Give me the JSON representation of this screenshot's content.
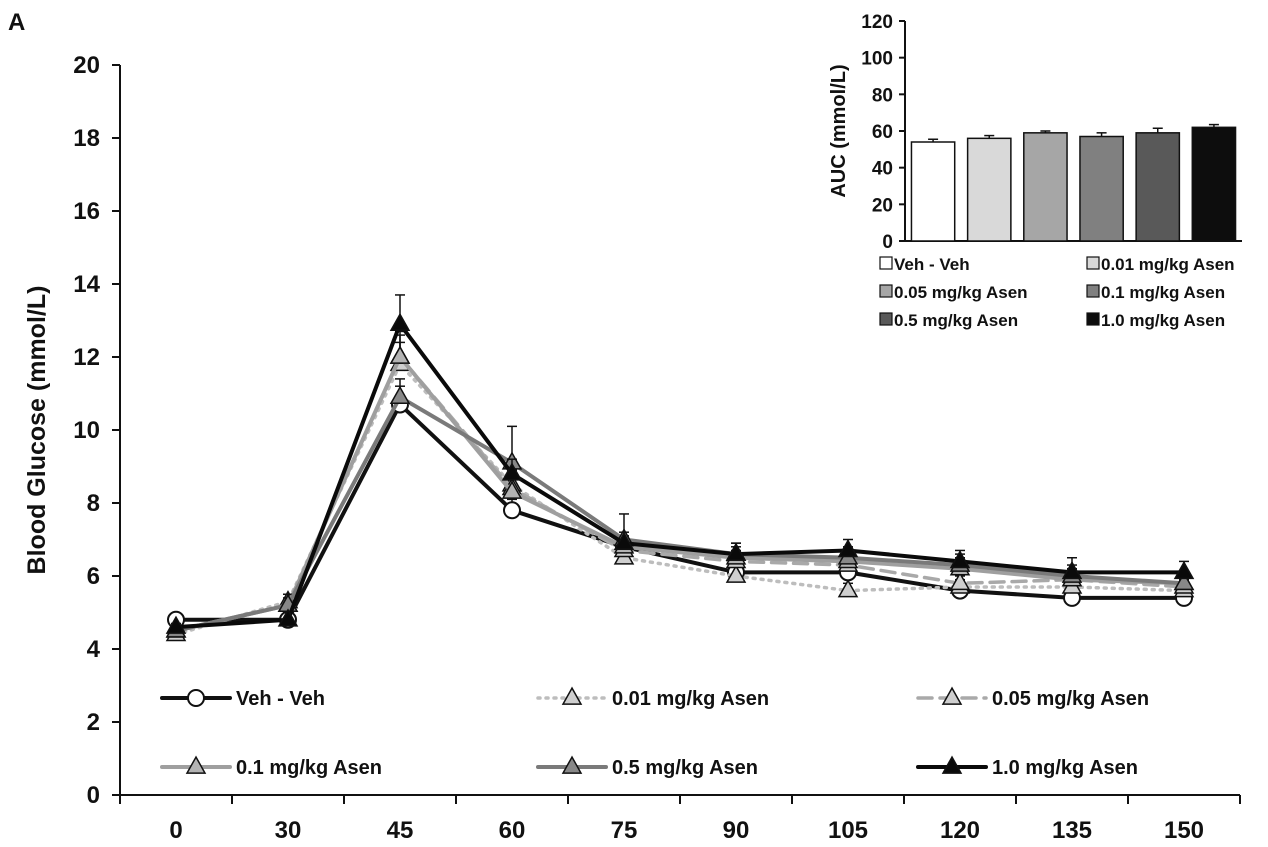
{
  "panel_label": "A",
  "colors": {
    "axis": "#111111",
    "veh": "#111111",
    "a001": "#bdbdbd",
    "a005": "#a9a9a9",
    "a01": "#9f9f9f",
    "a05": "#7a7a7a",
    "a10": "#0a0a0a"
  },
  "chart_data": [
    {
      "type": "line",
      "title": "",
      "xlabel": "",
      "ylabel": "Blood Glucose (mmol/L)",
      "x": [
        0,
        30,
        45,
        60,
        75,
        90,
        105,
        120,
        135,
        150
      ],
      "x_tick_labels": [
        "0",
        "30",
        "45",
        "60",
        "75",
        "90",
        "105",
        "120",
        "135",
        "150"
      ],
      "y_ticks": [
        0,
        2,
        4,
        6,
        8,
        10,
        12,
        14,
        16,
        18,
        20
      ],
      "ylim": [
        0,
        20
      ],
      "grid": false,
      "legend_position": "bottom",
      "series": [
        {
          "name": "Veh - Veh",
          "key": "veh",
          "line": "solid",
          "marker": "open-circle",
          "values": [
            4.8,
            4.8,
            10.7,
            7.8,
            6.8,
            6.1,
            6.1,
            5.6,
            5.4,
            5.4
          ],
          "errors": [
            0.1,
            0.2,
            0.5,
            0.3,
            0.2,
            0.2,
            0.2,
            0.2,
            0.2,
            0.2
          ]
        },
        {
          "name": "0.01 mg/kg Asen",
          "key": "a001",
          "line": "dotted",
          "marker": "triangle-light",
          "values": [
            4.4,
            5.3,
            11.8,
            8.5,
            6.5,
            6.0,
            5.6,
            5.7,
            5.7,
            5.6
          ],
          "errors": [
            0.1,
            0.2,
            0.6,
            0.4,
            0.3,
            0.3,
            0.2,
            0.2,
            0.3,
            0.2
          ]
        },
        {
          "name": "0.05 mg/kg Asen",
          "key": "a005",
          "line": "dashed",
          "marker": "triangle-light",
          "values": [
            4.5,
            5.2,
            12.0,
            8.4,
            6.7,
            6.4,
            6.3,
            5.8,
            5.9,
            5.7
          ],
          "errors": [
            0.1,
            0.2,
            0.7,
            0.5,
            0.3,
            0.3,
            0.3,
            0.2,
            0.3,
            0.2
          ]
        },
        {
          "name": "0.1 mg/kg Asen",
          "key": "a01",
          "line": "solid",
          "marker": "triangle-mid",
          "values": [
            4.5,
            5.2,
            12.0,
            8.3,
            6.8,
            6.5,
            6.4,
            6.2,
            5.9,
            5.8
          ],
          "errors": [
            0.1,
            0.3,
            0.6,
            0.4,
            0.3,
            0.3,
            0.3,
            0.3,
            0.3,
            0.2
          ]
        },
        {
          "name": "0.5 mg/kg Asen",
          "key": "a05",
          "line": "solid",
          "marker": "triangle-dark",
          "values": [
            4.5,
            5.2,
            10.9,
            9.1,
            7.0,
            6.6,
            6.5,
            6.3,
            6.0,
            5.8
          ],
          "errors": [
            0.1,
            0.3,
            0.5,
            1.0,
            0.7,
            0.3,
            0.3,
            0.3,
            0.3,
            0.2
          ]
        },
        {
          "name": "1.0 mg/kg Asen",
          "key": "a10",
          "line": "solid",
          "marker": "triangle-black",
          "values": [
            4.6,
            4.8,
            12.9,
            8.8,
            6.9,
            6.6,
            6.7,
            6.4,
            6.1,
            6.1
          ],
          "errors": [
            0.1,
            0.2,
            0.8,
            0.4,
            0.3,
            0.3,
            0.3,
            0.3,
            0.4,
            0.3
          ]
        }
      ]
    },
    {
      "type": "bar",
      "title": "",
      "ylabel": "AUC (mmol/L)",
      "y_ticks": [
        0,
        20,
        40,
        60,
        80,
        100,
        120
      ],
      "ylim": [
        0,
        120
      ],
      "grid": false,
      "legend_position": "bottom",
      "categories": [
        "Veh - Veh",
        "0.01 mg/kg Asen",
        "0.05 mg/kg Asen",
        "0.1 mg/kg Asen",
        "0.5 mg/kg Asen",
        "1.0 mg/kg Asen"
      ],
      "values": [
        54,
        56,
        59,
        57,
        59,
        62
      ],
      "errors": [
        1.5,
        1.5,
        1.0,
        2.0,
        2.5,
        1.5
      ],
      "fills": [
        "#ffffff",
        "#d9d9d9",
        "#a6a6a6",
        "#808080",
        "#595959",
        "#0d0d0d"
      ]
    }
  ]
}
